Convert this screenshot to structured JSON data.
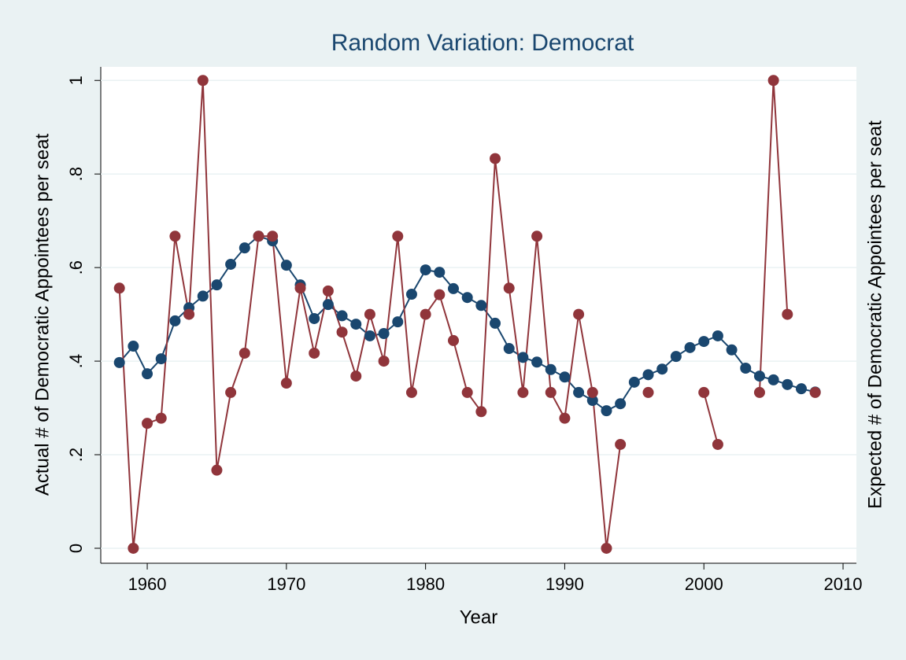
{
  "chart_data": {
    "type": "line",
    "title": "Random Variation: Democrat",
    "x_label": "Year",
    "y_label": "Actual # of Democratic Appointees per seat",
    "y2_label": "Expected # of Democratic Appointees per seat",
    "x": [
      1958,
      1959,
      1960,
      1961,
      1962,
      1963,
      1964,
      1965,
      1966,
      1967,
      1968,
      1969,
      1970,
      1971,
      1972,
      1973,
      1974,
      1975,
      1976,
      1977,
      1978,
      1979,
      1980,
      1981,
      1982,
      1983,
      1984,
      1985,
      1986,
      1987,
      1988,
      1989,
      1990,
      1991,
      1992,
      1993,
      1994,
      1995,
      1996,
      1997,
      1998,
      1999,
      2000,
      2001,
      2002,
      2003,
      2004,
      2005,
      2006,
      2007,
      2008
    ],
    "series": [
      {
        "color": "#1a476f",
        "values": [
          0.397,
          0.432,
          0.373,
          0.405,
          0.486,
          0.514,
          0.539,
          0.563,
          0.607,
          0.642,
          0.667,
          0.657,
          0.605,
          0.563,
          0.491,
          0.521,
          0.497,
          0.479,
          0.454,
          0.459,
          0.484,
          0.543,
          0.595,
          0.59,
          0.555,
          0.536,
          0.519,
          0.481,
          0.427,
          0.408,
          0.398,
          0.382,
          0.366,
          0.333,
          0.316,
          0.294,
          0.309,
          0.355,
          0.371,
          0.383,
          0.41,
          0.429,
          0.442,
          0.454,
          0.424,
          0.385,
          0.368,
          0.36,
          0.35,
          0.341,
          0.334
        ]
      },
      {
        "color": "#90353b",
        "values": [
          0.556,
          0,
          0.267,
          0.278,
          0.667,
          0.5,
          1,
          0.167,
          0.333,
          0.417,
          0.667,
          0.667,
          0.353,
          0.556,
          0.417,
          0.55,
          0.462,
          0.368,
          0.5,
          0.4,
          0.667,
          0.333,
          0.5,
          0.542,
          0.444,
          0.333,
          0.292,
          0.833,
          0.556,
          0.333,
          0.667,
          0.333,
          0.278,
          0.5,
          0.333,
          0,
          0.222,
          null,
          0.333,
          null,
          null,
          null,
          0.333,
          0.222,
          null,
          null,
          0.333,
          1,
          0.5,
          null,
          0.333
        ]
      }
    ],
    "xlim": [
      1956.66,
      2010.96
    ],
    "xticks": [
      1960,
      1970,
      1980,
      1990,
      2000,
      2010
    ],
    "ylim": [
      -0.032,
      1.029
    ],
    "yticks": [
      0,
      {
        "value": 0.2,
        "label": ".2"
      },
      {
        "value": 0.4,
        "label": ".4"
      },
      {
        "value": 0.6,
        "label": ".6"
      },
      {
        "value": 0.8,
        "label": ".8"
      },
      1
    ],
    "grid": true
  }
}
